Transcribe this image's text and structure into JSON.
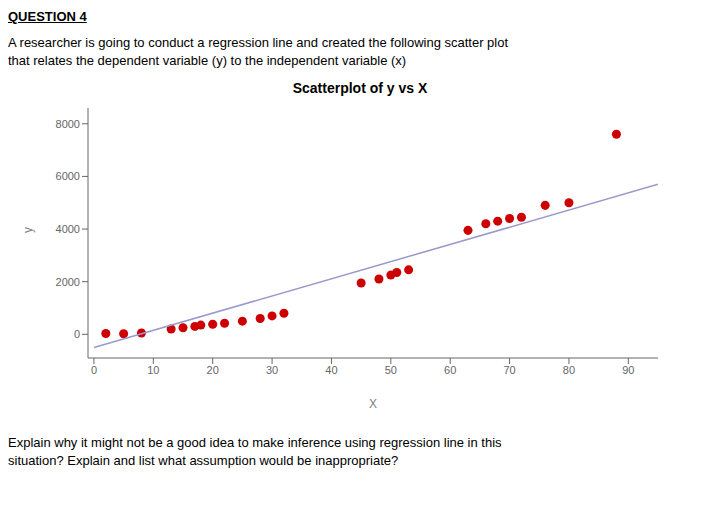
{
  "chart_data": {
    "type": "scatter",
    "title": "Scatterplot of y vs X",
    "x_label": "X",
    "y_label": "y",
    "annotations": [
      "QUESTION 4",
      "A researcher is going to conduct a regression line and created the following scatter plot",
      "that relates the dependent variable (y) to the independent variable (x)",
      "Explain why it might not be a good idea to make inference using regression line in this",
      "situation? Explain and list what assumption would be inappropriate?"
    ],
    "series": [
      {
        "type": "scatter",
        "color": "#cc0000",
        "x": [
          2,
          5,
          8,
          13,
          15,
          17,
          18,
          20,
          22,
          25,
          28,
          30,
          32,
          45,
          48,
          50,
          51,
          53,
          63,
          66,
          68,
          70,
          72,
          76,
          80,
          88
        ],
        "values": [
          30,
          20,
          50,
          200,
          250,
          300,
          350,
          380,
          420,
          500,
          600,
          700,
          800,
          1950,
          2100,
          2250,
          2350,
          2450,
          3950,
          4200,
          4300,
          4400,
          4450,
          4900,
          5000,
          7600
        ]
      },
      {
        "type": "line",
        "color": "#9999cc",
        "x": [
          0,
          95
        ],
        "values": [
          -500,
          5700
        ]
      }
    ],
    "xlim": [
      -1,
      95
    ],
    "ylim": [
      -900,
      8600
    ],
    "xticks": [
      0,
      10,
      20,
      30,
      40,
      50,
      60,
      70,
      80,
      90
    ],
    "yticks": [
      0,
      2000,
      4000,
      6000,
      8000
    ],
    "grid": false
  }
}
